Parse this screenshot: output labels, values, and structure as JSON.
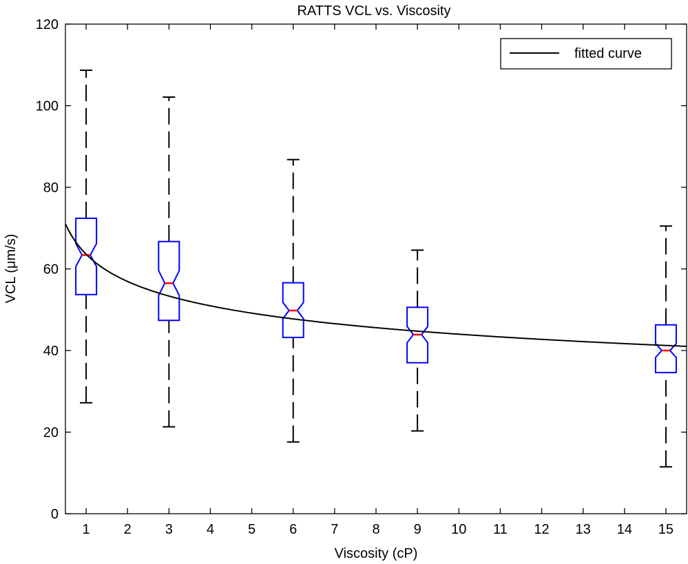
{
  "chart_data": {
    "type": "boxplot",
    "title": "RATTS VCL vs. Viscosity",
    "xlabel": "Viscosity (cP)",
    "ylabel": "VCL (μm/s)",
    "xlim": [
      0.5,
      15.5
    ],
    "ylim": [
      0,
      120
    ],
    "xticks": [
      1,
      2,
      3,
      4,
      5,
      6,
      7,
      8,
      9,
      10,
      11,
      12,
      13,
      14,
      15
    ],
    "yticks": [
      0,
      20,
      40,
      60,
      80,
      100,
      120
    ],
    "boxes": [
      {
        "x": 1,
        "whisker_low": 27.2,
        "q1": 53.7,
        "median": 63.4,
        "q3": 72.4,
        "whisker_high": 108.7,
        "notch_low": 60.6,
        "notch_high": 66.2
      },
      {
        "x": 3,
        "whisker_low": 21.3,
        "q1": 47.4,
        "median": 56.5,
        "q3": 66.7,
        "whisker_high": 102.1,
        "notch_low": 53.5,
        "notch_high": 59.6
      },
      {
        "x": 6,
        "whisker_low": 17.6,
        "q1": 43.2,
        "median": 49.8,
        "q3": 56.6,
        "whisker_high": 86.8,
        "notch_low": 47.8,
        "notch_high": 51.8
      },
      {
        "x": 9,
        "whisker_low": 20.3,
        "q1": 37.0,
        "median": 43.9,
        "q3": 50.6,
        "whisker_high": 64.6,
        "notch_low": 41.9,
        "notch_high": 45.9
      },
      {
        "x": 15,
        "whisker_low": 11.5,
        "q1": 34.6,
        "median": 40.0,
        "q3": 46.3,
        "whisker_high": 70.5,
        "notch_low": 38.3,
        "notch_high": 41.7
      }
    ],
    "fitted_curve": {
      "name": "fitted curve",
      "model": "y = a * x^b",
      "a": 63.6,
      "b": -0.16,
      "x_range": [
        0.5,
        15.5
      ]
    },
    "legend": {
      "entries": [
        "fitted curve"
      ],
      "placement": "top-right"
    },
    "colors": {
      "box": "#0000ff",
      "median": "#ff0000",
      "whisker": "#000000",
      "curve": "#000000"
    }
  }
}
